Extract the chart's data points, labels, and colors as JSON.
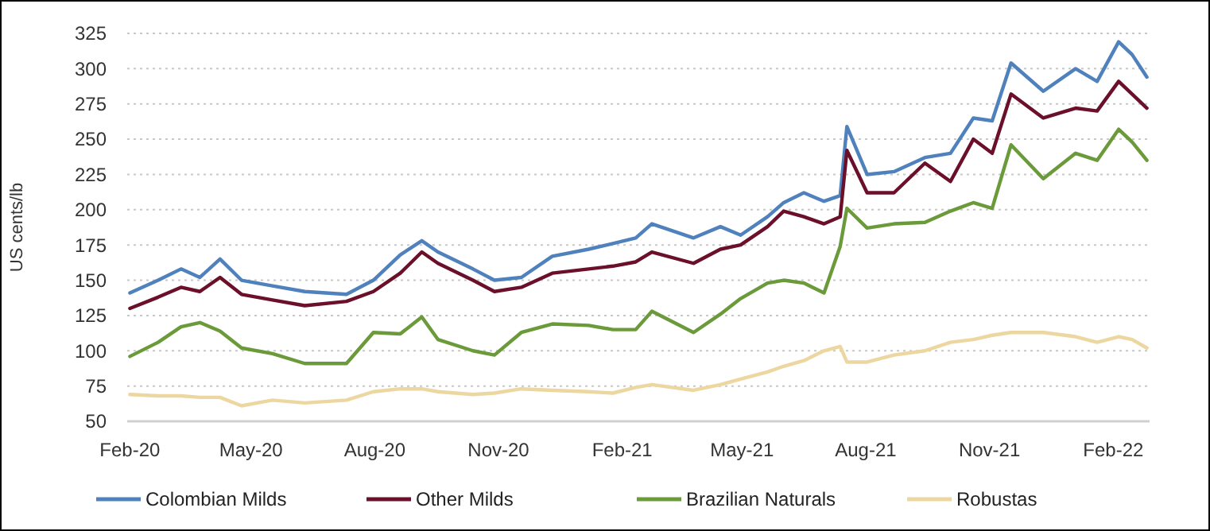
{
  "chart_data": {
    "type": "line",
    "ylabel": "US cents/lb",
    "x": [
      "2020-02-01",
      "2020-02-22",
      "2020-03-10",
      "2020-03-24",
      "2020-04-08",
      "2020-04-24",
      "2020-05-17",
      "2020-06-10",
      "2020-07-11",
      "2020-07-31",
      "2020-08-20",
      "2020-09-05",
      "2020-09-17",
      "2020-10-13",
      "2020-10-29",
      "2020-11-18",
      "2020-12-11",
      "2021-01-07",
      "2021-01-25",
      "2021-02-11",
      "2021-02-23",
      "2021-03-26",
      "2021-04-15",
      "2021-04-30",
      "2021-05-20",
      "2021-06-01",
      "2021-06-16",
      "2021-07-01",
      "2021-07-13",
      "2021-07-18",
      "2021-08-02",
      "2021-08-22",
      "2021-09-14",
      "2021-10-03",
      "2021-10-20",
      "2021-11-03",
      "2021-11-17",
      "2021-12-11",
      "2022-01-04",
      "2022-01-20",
      "2022-02-05",
      "2022-02-15",
      "2022-02-26"
    ],
    "series": [
      {
        "name": "Colombian Milds",
        "color": "#4f81bd",
        "values": [
          141,
          150,
          158,
          152,
          165,
          150,
          146,
          142,
          140,
          150,
          168,
          178,
          170,
          158,
          150,
          152,
          167,
          172,
          176,
          180,
          190,
          180,
          188,
          182,
          195,
          205,
          212,
          206,
          210,
          259,
          225,
          227,
          237,
          240,
          265,
          263,
          304,
          284,
          300,
          291,
          319,
          310,
          294
        ]
      },
      {
        "name": "Other Milds",
        "color": "#6b0f2a",
        "values": [
          130,
          138,
          145,
          142,
          152,
          140,
          136,
          132,
          135,
          142,
          155,
          170,
          162,
          150,
          142,
          145,
          155,
          158,
          160,
          163,
          170,
          162,
          172,
          175,
          188,
          199,
          195,
          190,
          195,
          242,
          212,
          212,
          233,
          220,
          250,
          240,
          282,
          265,
          272,
          270,
          291,
          282,
          272
        ]
      },
      {
        "name": "Brazilian Naturals",
        "color": "#6a9a3a",
        "values": [
          96,
          106,
          117,
          120,
          114,
          102,
          98,
          91,
          91,
          113,
          112,
          124,
          108,
          100,
          97,
          113,
          119,
          118,
          115,
          115,
          128,
          113,
          126,
          137,
          148,
          150,
          148,
          141,
          174,
          201,
          187,
          190,
          191,
          199,
          205,
          201,
          246,
          222,
          240,
          235,
          257,
          248,
          235
        ]
      },
      {
        "name": "Robustas",
        "color": "#ecd7a0",
        "values": [
          69,
          68,
          68,
          67,
          67,
          61,
          65,
          63,
          65,
          71,
          73,
          73,
          71,
          69,
          70,
          73,
          72,
          71,
          70,
          74,
          76,
          72,
          76,
          80,
          85,
          89,
          93,
          100,
          103,
          92,
          92,
          97,
          100,
          106,
          108,
          111,
          113,
          113,
          110,
          106,
          110,
          108,
          102
        ]
      }
    ],
    "xlim": [
      "2020-01-30",
      "2022-02-28"
    ],
    "xticks": [
      {
        "value": "2020-02-01",
        "label": "Feb-20"
      },
      {
        "value": "2020-05-01",
        "label": "May-20"
      },
      {
        "value": "2020-08-01",
        "label": "Aug-20"
      },
      {
        "value": "2020-11-01",
        "label": "Nov-20"
      },
      {
        "value": "2021-02-01",
        "label": "Feb-21"
      },
      {
        "value": "2021-05-01",
        "label": "May-21"
      },
      {
        "value": "2021-08-01",
        "label": "Aug-21"
      },
      {
        "value": "2021-11-01",
        "label": "Nov-21"
      },
      {
        "value": "2022-02-01",
        "label": "Feb-22"
      }
    ],
    "ylim": [
      50,
      325
    ],
    "yticks": [
      50,
      75,
      100,
      125,
      150,
      175,
      200,
      225,
      250,
      275,
      300,
      325
    ],
    "grid": "y",
    "legend": "bottom",
    "marker": "none",
    "line_style": "solid"
  }
}
